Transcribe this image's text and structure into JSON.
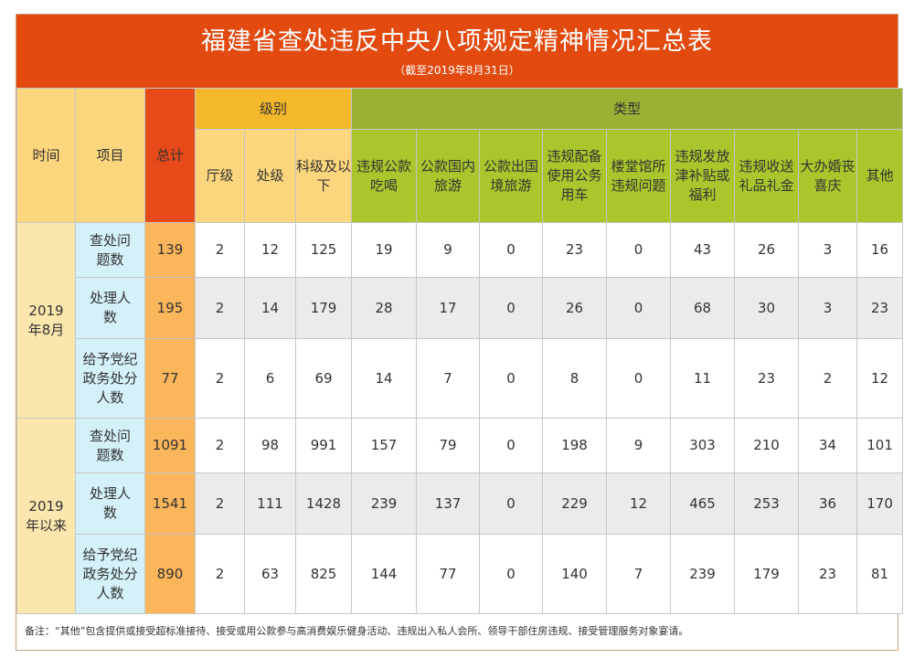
{
  "title": "福建省查处违反中央八项规定精神情况汇总表",
  "subtitle": "（截至2019年8月31日）",
  "headers": {
    "time": "时间",
    "item": "项目",
    "total": "总计",
    "level_group": "级别",
    "type_group": "类型",
    "levels": [
      "厅级",
      "处级",
      "科级及以下"
    ],
    "types": [
      "违规公款吃喝",
      "公款国内旅游",
      "公款出国境旅游",
      "违规配备使用公务用车",
      "楼堂馆所违规问题",
      "违规发放津补贴或福利",
      "违规收送礼品礼金",
      "大办婚丧喜庆",
      "其他"
    ]
  },
  "groups": [
    {
      "period": "2019年8月",
      "rows": [
        {
          "item": "查处问题数",
          "total": "139",
          "levels": [
            "2",
            "12",
            "125"
          ],
          "types": [
            "19",
            "9",
            "0",
            "23",
            "0",
            "43",
            "26",
            "3",
            "16"
          ]
        },
        {
          "item": "处理人数",
          "total": "195",
          "levels": [
            "2",
            "14",
            "179"
          ],
          "types": [
            "28",
            "17",
            "0",
            "26",
            "0",
            "68",
            "30",
            "3",
            "23"
          ]
        },
        {
          "item": "给予党纪政务处分人数",
          "total": "77",
          "levels": [
            "2",
            "6",
            "69"
          ],
          "types": [
            "14",
            "7",
            "0",
            "8",
            "0",
            "11",
            "23",
            "2",
            "12"
          ]
        }
      ]
    },
    {
      "period": "2019年以来",
      "rows": [
        {
          "item": "查处问题数",
          "total": "1091",
          "levels": [
            "2",
            "98",
            "991"
          ],
          "types": [
            "157",
            "79",
            "0",
            "198",
            "9",
            "303",
            "210",
            "34",
            "101"
          ]
        },
        {
          "item": "处理人数",
          "total": "1541",
          "levels": [
            "2",
            "111",
            "1428"
          ],
          "types": [
            "239",
            "137",
            "0",
            "229",
            "12",
            "465",
            "253",
            "36",
            "170"
          ]
        },
        {
          "item": "给予党纪政务处分人数",
          "total": "890",
          "levels": [
            "2",
            "63",
            "825"
          ],
          "types": [
            "144",
            "77",
            "0",
            "140",
            "7",
            "239",
            "179",
            "23",
            "81"
          ]
        }
      ]
    }
  ],
  "note": "备注：“其他”包含提供或接受超标准接待、接受或用公款参与高消费娱乐健身活动、违规出入私人会所、领导干部住房违规、接受管理服务对象宴请。"
}
